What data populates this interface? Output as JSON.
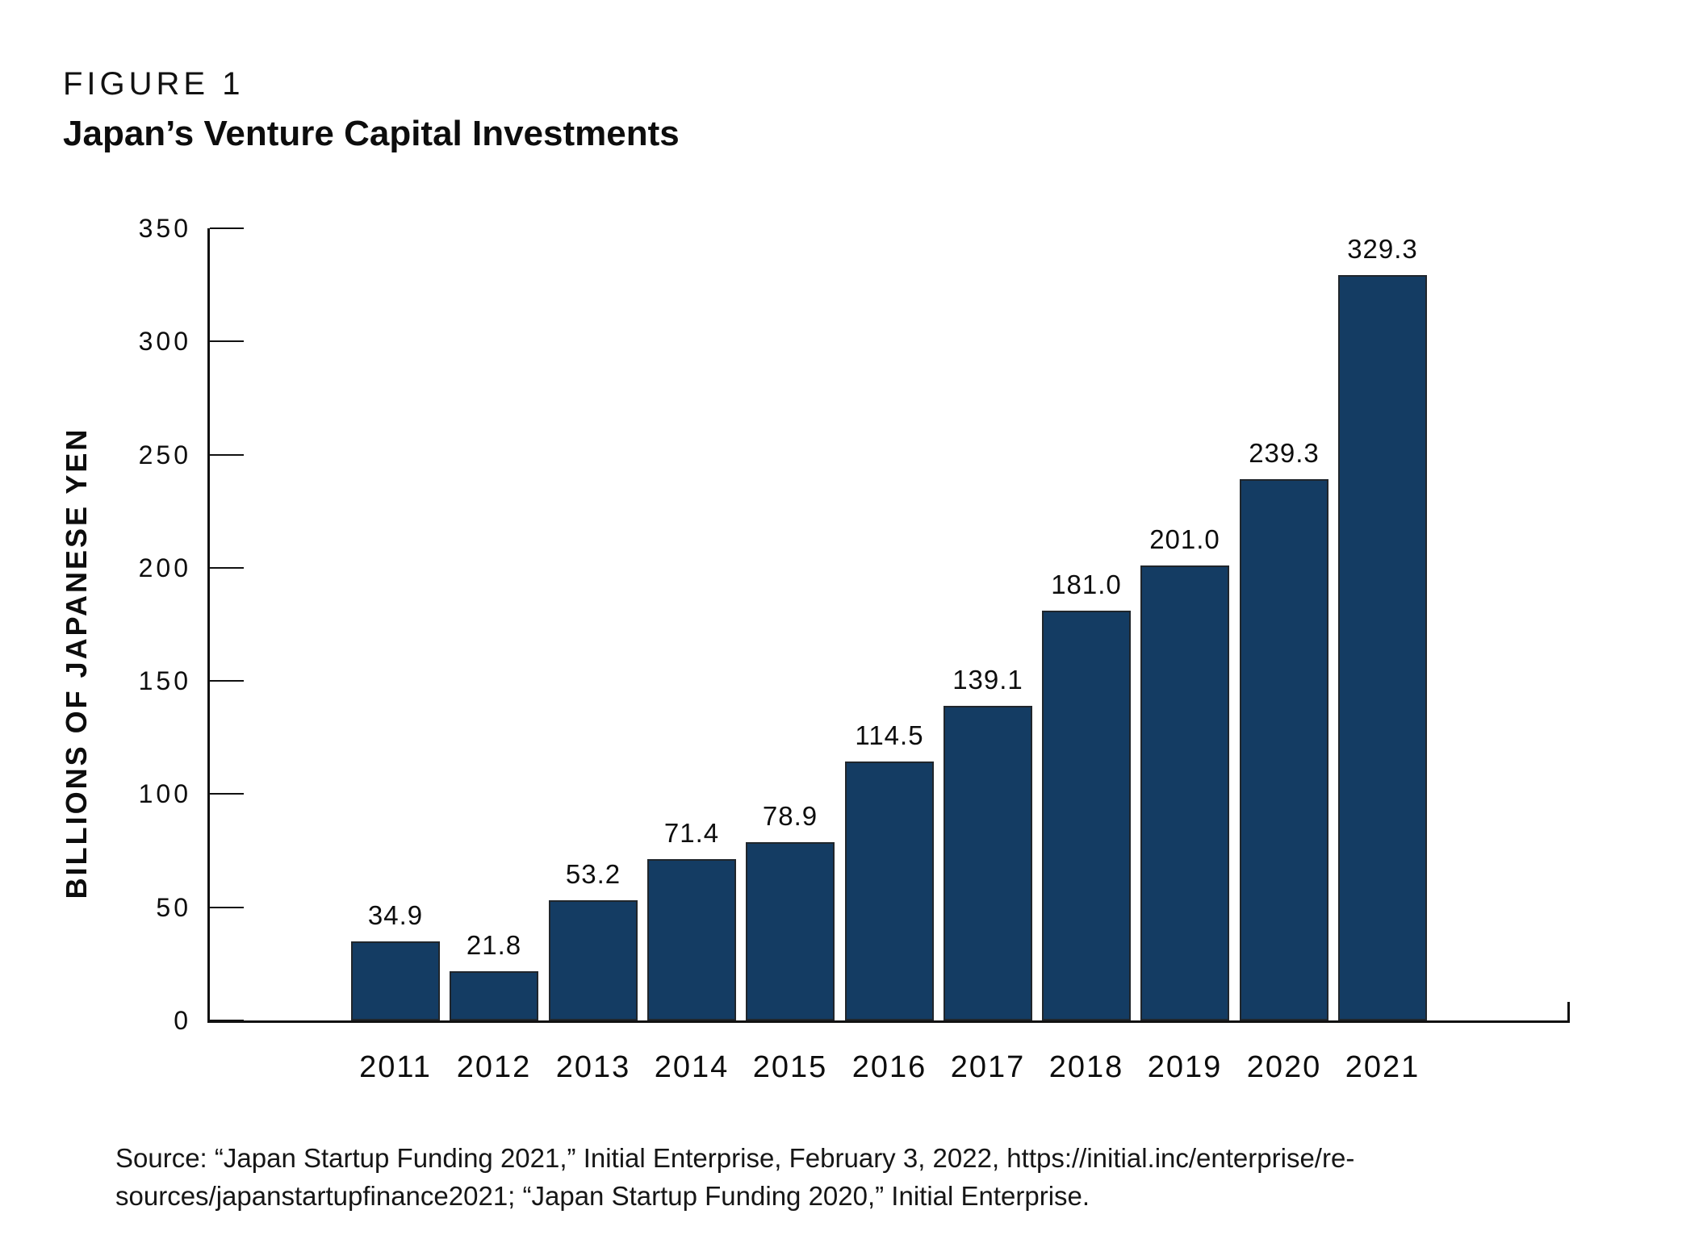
{
  "header": {
    "figure_label": "FIGURE 1",
    "title": "Japan’s Venture Capital Investments"
  },
  "chart_data": {
    "type": "bar",
    "title": "Japan’s Venture Capital Investments",
    "categories": [
      "2011",
      "2012",
      "2013",
      "2014",
      "2015",
      "2016",
      "2017",
      "2018",
      "2019",
      "2020",
      "2021"
    ],
    "values": [
      34.9,
      21.8,
      53.2,
      71.4,
      78.9,
      114.5,
      139.1,
      181.0,
      201.0,
      239.3,
      329.3
    ],
    "value_labels": [
      "34.9",
      "21.8",
      "53.2",
      "71.4",
      "78.9",
      "114.5",
      "139.1",
      "181.0",
      "201.0",
      "239.3",
      "329.3"
    ],
    "xlabel": "",
    "ylabel": "BILLIONS OF JAPANESE YEN",
    "ylim": [
      0,
      350
    ],
    "yticks": [
      0,
      50,
      100,
      150,
      200,
      250,
      300,
      350
    ],
    "grid": false,
    "legend": false,
    "bar_color": "#143C63",
    "bar_edge_color": "#20262C",
    "axis_color": "#111111",
    "text_color": "#111111"
  },
  "source": {
    "lines": [
      "Source: “Japan Startup Funding 2021,” Initial Enterprise, February 3, 2022, https://initial.inc/enterprise/re-",
      "sources/japanstartupfinance2021; “Japan Startup Funding 2020,” Initial Enterprise."
    ]
  }
}
